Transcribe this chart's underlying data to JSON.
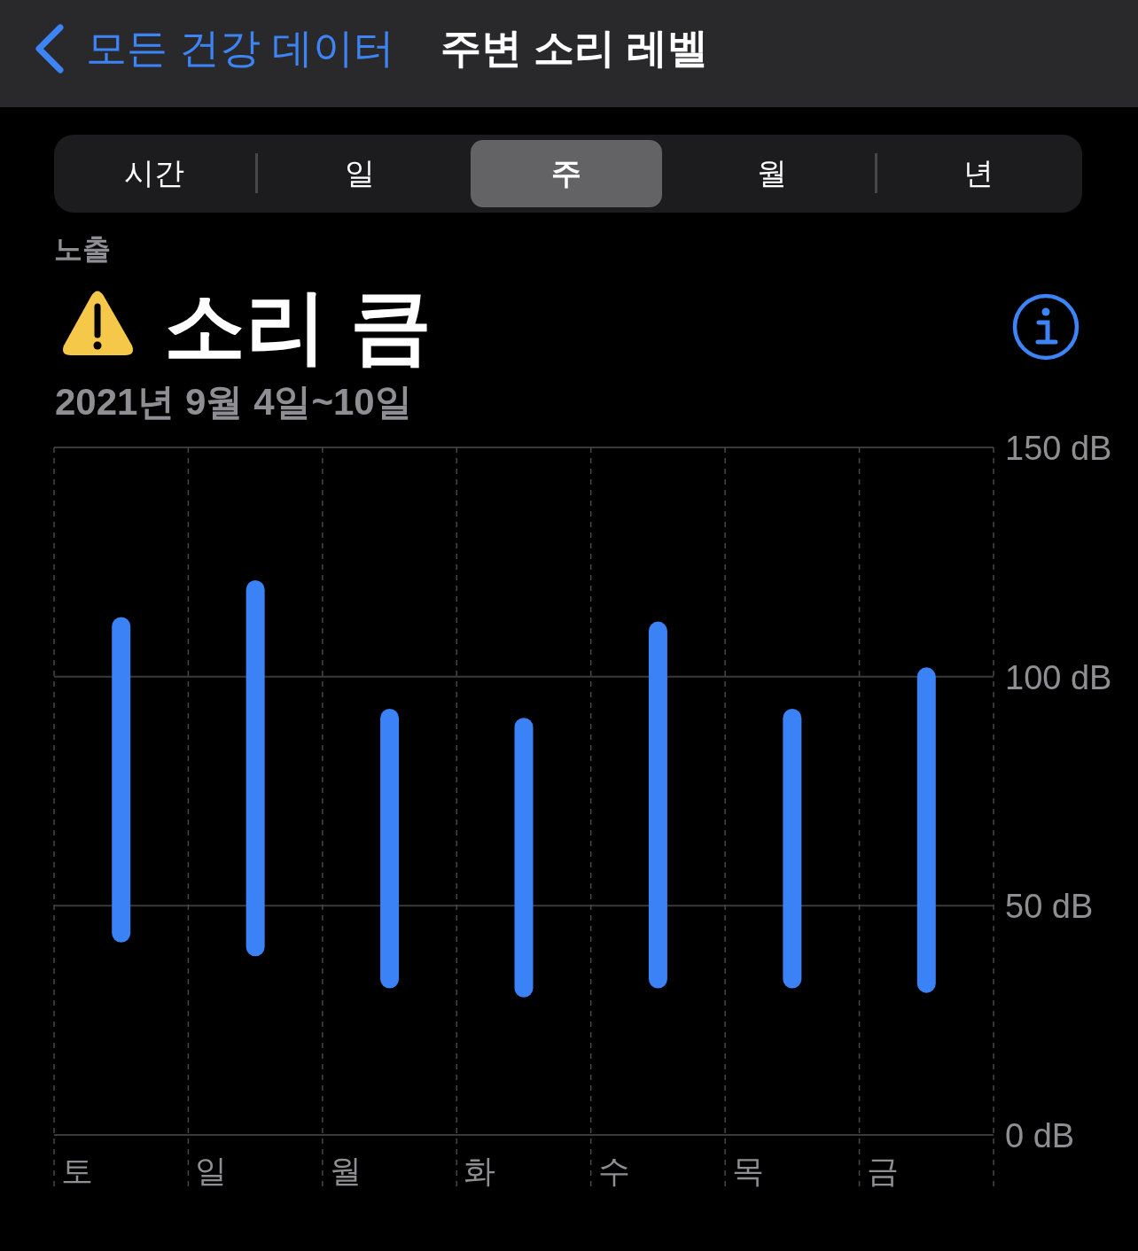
{
  "chart_data": {
    "type": "bar",
    "title": "주변 소리 레벨",
    "subtitle": "2021년 9월 4일~10일",
    "annotations": [
      "모든 건강 데이터",
      "시간",
      "일",
      "주",
      "월",
      "년",
      "노출",
      "소리 큼"
    ],
    "categories": [
      "토",
      "일",
      "월",
      "화",
      "수",
      "목",
      "금"
    ],
    "base": [
      42,
      39,
      32,
      30,
      32,
      32,
      31
    ],
    "values": [
      71,
      82,
      61,
      61,
      80,
      61,
      71
    ],
    "color": "#3b82f6",
    "ylim": [
      0,
      150
    ],
    "yticks": [
      {
        "value": 0,
        "label": "0 dB"
      },
      {
        "value": 50,
        "label": "50 dB"
      },
      {
        "value": 100,
        "label": "100 dB"
      },
      {
        "value": 150,
        "label": "150 dB"
      }
    ],
    "grid": true
  }
}
